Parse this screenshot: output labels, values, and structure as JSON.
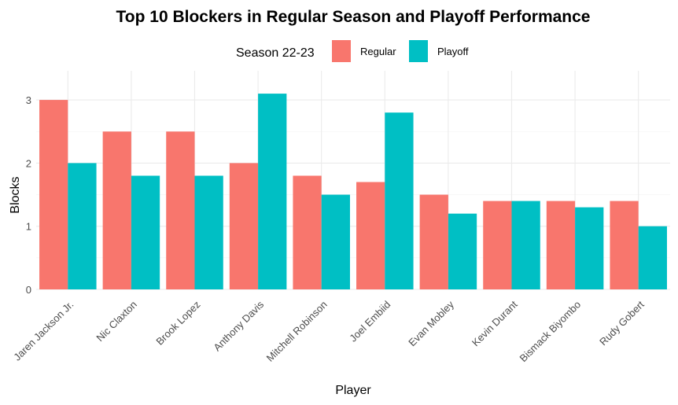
{
  "chart_data": {
    "type": "bar",
    "title": "Top 10 Blockers in Regular Season and Playoff Performance",
    "xlabel": "Player",
    "ylabel": "Blocks",
    "legend_title": "Season 22-23",
    "legend_position": "top",
    "grid": true,
    "ylim": [
      0,
      3.25
    ],
    "yticks": [
      0,
      1,
      2,
      3
    ],
    "categories": [
      "Jaren Jackson Jr.",
      "Nic Claxton",
      "Brook Lopez",
      "Anthony Davis",
      "Mitchell Robinson",
      "Joel Embiid",
      "Evan Mobley",
      "Kevin Durant",
      "Bismack Biyombo",
      "Rudy Gobert"
    ],
    "series": [
      {
        "name": "Regular",
        "color": "#F8766D",
        "values": [
          3.0,
          2.5,
          2.5,
          2.0,
          1.8,
          1.7,
          1.5,
          1.4,
          1.4,
          1.4
        ]
      },
      {
        "name": "Playoff",
        "color": "#00BFC4",
        "values": [
          2.0,
          1.8,
          1.8,
          3.1,
          1.5,
          2.8,
          1.2,
          1.4,
          1.3,
          1.0
        ]
      }
    ]
  }
}
